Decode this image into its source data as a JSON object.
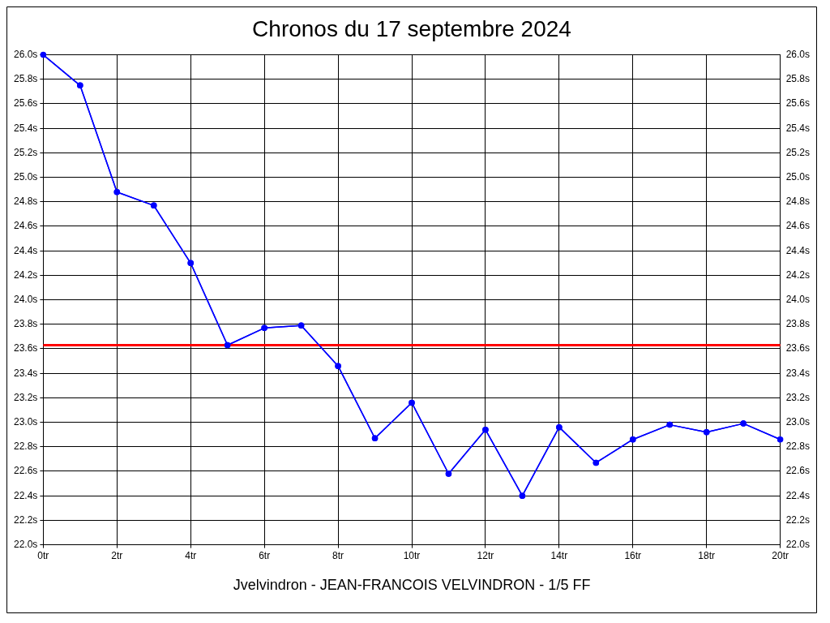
{
  "chart_data": {
    "type": "line",
    "title": "Chronos du 17 septembre 2024",
    "x": [
      0,
      1,
      2,
      3,
      4,
      5,
      6,
      7,
      8,
      9,
      10,
      11,
      12,
      13,
      14,
      15,
      16,
      17,
      18,
      19,
      20
    ],
    "series": [
      {
        "color": "#0000ff",
        "values": [
          26.0,
          25.75,
          24.88,
          24.77,
          24.3,
          23.63,
          23.77,
          23.79,
          23.46,
          22.87,
          23.16,
          22.58,
          22.94,
          22.4,
          22.96,
          22.67,
          22.86,
          22.98,
          22.92,
          22.99,
          22.86
        ]
      }
    ],
    "xlim": [
      0,
      20
    ],
    "xticks": [
      {
        "value": 0,
        "label": "0tr"
      },
      {
        "value": 2,
        "label": "2tr"
      },
      {
        "value": 4,
        "label": "4tr"
      },
      {
        "value": 6,
        "label": "6tr"
      },
      {
        "value": 8,
        "label": "8tr"
      },
      {
        "value": 10,
        "label": "10tr"
      },
      {
        "value": 12,
        "label": "12tr"
      },
      {
        "value": 14,
        "label": "14tr"
      },
      {
        "value": 16,
        "label": "16tr"
      },
      {
        "value": 18,
        "label": "18tr"
      },
      {
        "value": 20,
        "label": "20tr"
      }
    ],
    "ylim": [
      22,
      26
    ],
    "yticks": [
      {
        "value": 22,
        "label": "22.0s"
      },
      {
        "value": 22.2,
        "label": "22.2s"
      },
      {
        "value": 22.4,
        "label": "22.4s"
      },
      {
        "value": 22.6,
        "label": "22.6s"
      },
      {
        "value": 22.8,
        "label": "22.8s"
      },
      {
        "value": 23,
        "label": "23.0s"
      },
      {
        "value": 23.2,
        "label": "23.2s"
      },
      {
        "value": 23.4,
        "label": "23.4s"
      },
      {
        "value": 23.6,
        "label": "23.6s"
      },
      {
        "value": 23.8,
        "label": "23.8s"
      },
      {
        "value": 24,
        "label": "24.0s"
      },
      {
        "value": 24.2,
        "label": "24.2s"
      },
      {
        "value": 24.4,
        "label": "24.4s"
      },
      {
        "value": 24.6,
        "label": "24.6s"
      },
      {
        "value": 24.8,
        "label": "24.8s"
      },
      {
        "value": 25,
        "label": "25.0s"
      },
      {
        "value": 25.2,
        "label": "25.2s"
      },
      {
        "value": 25.4,
        "label": "25.4s"
      },
      {
        "value": 25.6,
        "label": "25.6s"
      },
      {
        "value": 25.8,
        "label": "25.8s"
      },
      {
        "value": 26,
        "label": "26.0s"
      }
    ],
    "y2lim": [
      22,
      26
    ],
    "y2ticks": [
      {
        "value": 22,
        "label": "22.0s"
      },
      {
        "value": 22.2,
        "label": "22.2s"
      },
      {
        "value": 22.4,
        "label": "22.4s"
      },
      {
        "value": 22.6,
        "label": "22.6s"
      },
      {
        "value": 22.8,
        "label": "22.8s"
      },
      {
        "value": 23,
        "label": "23.0s"
      },
      {
        "value": 23.2,
        "label": "23.2s"
      },
      {
        "value": 23.4,
        "label": "23.4s"
      },
      {
        "value": 23.6,
        "label": "23.6s"
      },
      {
        "value": 23.8,
        "label": "23.8s"
      },
      {
        "value": 24,
        "label": "24.0s"
      },
      {
        "value": 24.2,
        "label": "24.2s"
      },
      {
        "value": 24.4,
        "label": "24.4s"
      },
      {
        "value": 24.6,
        "label": "24.6s"
      },
      {
        "value": 24.8,
        "label": "24.8s"
      },
      {
        "value": 25,
        "label": "25.0s"
      },
      {
        "value": 25.2,
        "label": "25.2s"
      },
      {
        "value": 25.4,
        "label": "25.4s"
      },
      {
        "value": 25.6,
        "label": "25.6s"
      },
      {
        "value": 25.8,
        "label": "25.8s"
      },
      {
        "value": 26,
        "label": "26.0s"
      }
    ],
    "ref_lines": [
      {
        "axis": "y",
        "value": 23.63,
        "color": "#ff0000"
      }
    ],
    "annotations": [
      "Jvelvindron - JEAN-FRANCOIS VELVINDRON - 1/5 FF"
    ],
    "grid": true,
    "legend": false,
    "marker": "circle",
    "line_style": "solid"
  }
}
